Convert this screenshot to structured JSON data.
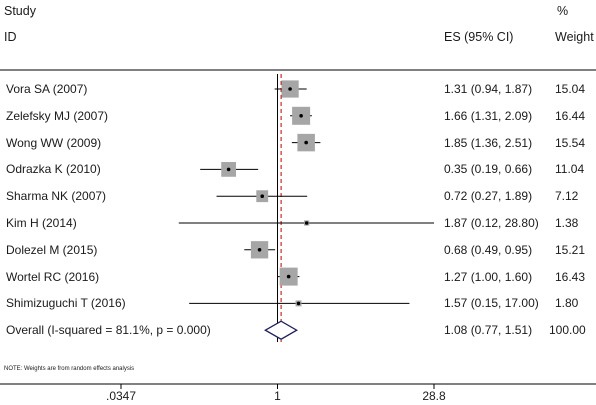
{
  "header": {
    "study_label": "Study",
    "id_label": "ID",
    "es_label": "ES (95% CI)",
    "pct_label": "%",
    "weight_label": "Weight"
  },
  "note": "NOTE: Weights are from random effects analysis",
  "colors": {
    "box": "#a6a6a6",
    "line": "#000000",
    "null_line": "#000000",
    "overall_line": "#c00000",
    "diamond": "#1f1f5c"
  },
  "chart_data": {
    "type": "forest",
    "x_scale": "log",
    "xlim": [
      0.0347,
      28.8
    ],
    "null_value": 1,
    "xticks": [
      ".0347",
      "1",
      "28.8"
    ],
    "studies": [
      {
        "id": "Vora SA (2007)",
        "es": 1.31,
        "lo": 0.94,
        "hi": 1.87,
        "ci_text": "1.31 (0.94, 1.87)",
        "weight": 15.04,
        "weight_text": "15.04"
      },
      {
        "id": "Zelefsky MJ (2007)",
        "es": 1.66,
        "lo": 1.31,
        "hi": 2.09,
        "ci_text": "1.66 (1.31, 2.09)",
        "weight": 16.44,
        "weight_text": "16.44"
      },
      {
        "id": "Wong WW (2009)",
        "es": 1.85,
        "lo": 1.36,
        "hi": 2.51,
        "ci_text": "1.85 (1.36, 2.51)",
        "weight": 15.54,
        "weight_text": "15.54"
      },
      {
        "id": "Odrazka K (2010)",
        "es": 0.35,
        "lo": 0.19,
        "hi": 0.66,
        "ci_text": "0.35 (0.19, 0.66)",
        "weight": 11.04,
        "weight_text": "11.04"
      },
      {
        "id": "Sharma NK (2007)",
        "es": 0.72,
        "lo": 0.27,
        "hi": 1.89,
        "ci_text": "0.72 (0.27, 1.89)",
        "weight": 7.12,
        "weight_text": "7.12"
      },
      {
        "id": "Kim H (2014)",
        "es": 1.87,
        "lo": 0.12,
        "hi": 28.8,
        "ci_text": "1.87 (0.12, 28.80)",
        "weight": 1.38,
        "weight_text": "1.38"
      },
      {
        "id": "Dolezel M (2015)",
        "es": 0.68,
        "lo": 0.49,
        "hi": 0.95,
        "ci_text": "0.68 (0.49, 0.95)",
        "weight": 15.21,
        "weight_text": "15.21"
      },
      {
        "id": "Wortel RC (2016)",
        "es": 1.27,
        "lo": 1.0,
        "hi": 1.6,
        "ci_text": "1.27 (1.00, 1.60)",
        "weight": 16.43,
        "weight_text": "16.43"
      },
      {
        "id": "Shimizuguchi T (2016)",
        "es": 1.57,
        "lo": 0.15,
        "hi": 17.0,
        "ci_text": "1.57 (0.15, 17.00)",
        "weight": 1.8,
        "weight_text": "1.80"
      }
    ],
    "overall": {
      "label": "Overall  (I-squared = 81.1%, p = 0.000)",
      "es": 1.08,
      "lo": 0.77,
      "hi": 1.51,
      "ci_text": "1.08 (0.77, 1.51)",
      "weight_text": "100.00"
    }
  }
}
